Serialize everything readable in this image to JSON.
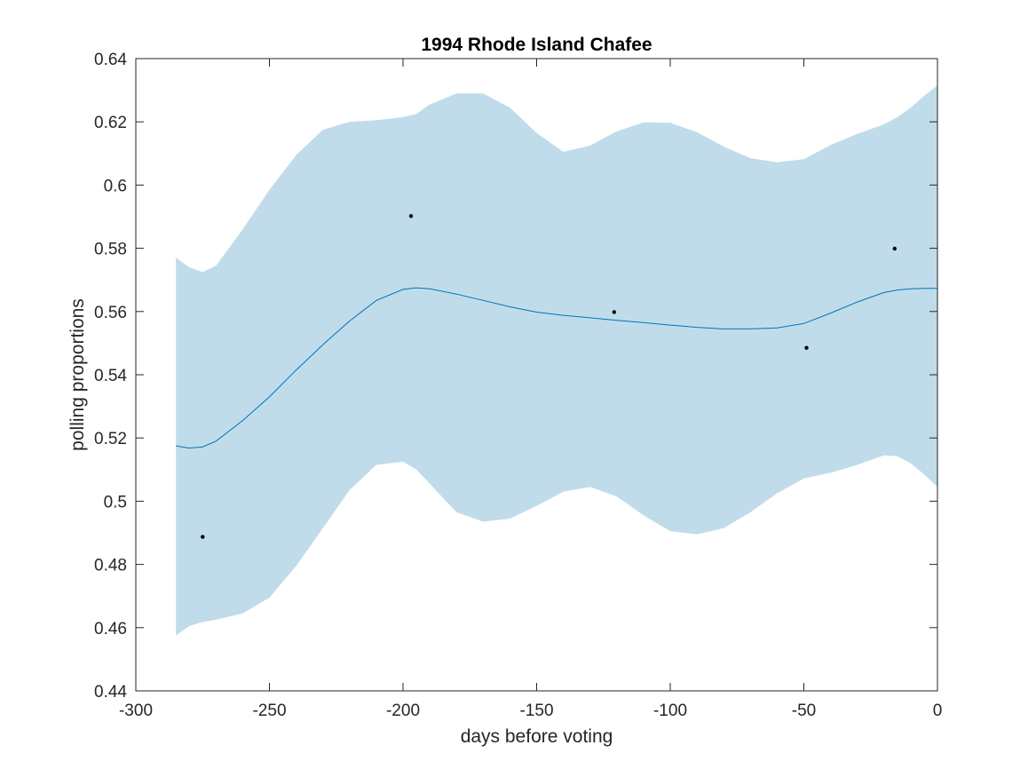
{
  "chart_data": {
    "type": "line",
    "title": "1994 Rhode Island Chafee",
    "xlabel": "days before voting",
    "ylabel": "polling proportions",
    "xlim": [
      -300,
      0
    ],
    "ylim": [
      0.44,
      0.64
    ],
    "xticks": [
      -300,
      -250,
      -200,
      -150,
      -100,
      -50,
      0
    ],
    "xtick_labels": [
      "-300",
      "-250",
      "-200",
      "-150",
      "-100",
      "-50",
      "0"
    ],
    "yticks": [
      0.44,
      0.46,
      0.48,
      0.5,
      0.52,
      0.54,
      0.56,
      0.58,
      0.6,
      0.62,
      0.64
    ],
    "ytick_labels": [
      "0.44",
      "0.46",
      "0.48",
      "0.5",
      "0.52",
      "0.54",
      "0.56",
      "0.58",
      "0.6",
      "0.62",
      "0.64"
    ],
    "grid": false,
    "colors": {
      "band": "#c0dcea",
      "line": "#0072bd",
      "points": "#000000",
      "axes": "#262626"
    },
    "series": [
      {
        "type": "line",
        "x": [
          -285,
          -280,
          -275,
          -270,
          -260,
          -250,
          -240,
          -230,
          -220,
          -210,
          -200,
          -195,
          -190,
          -180,
          -170,
          -160,
          -150,
          -140,
          -130,
          -120,
          -110,
          -100,
          -90,
          -80,
          -70,
          -60,
          -50,
          -40,
          -30,
          -20,
          -15,
          -10,
          -5,
          0
        ],
        "y": [
          0.5175,
          0.5168,
          0.5172,
          0.519,
          0.5255,
          0.533,
          0.5415,
          0.5495,
          0.557,
          0.5635,
          0.567,
          0.5675,
          0.5672,
          0.5655,
          0.5635,
          0.5615,
          0.5598,
          0.5588,
          0.558,
          0.5572,
          0.5565,
          0.5557,
          0.555,
          0.5545,
          0.5545,
          0.5548,
          0.5562,
          0.5595,
          0.563,
          0.566,
          0.5668,
          0.5672,
          0.5673,
          0.5673
        ]
      },
      {
        "type": "band",
        "x": [
          -285,
          -280,
          -275,
          -270,
          -260,
          -250,
          -240,
          -230,
          -220,
          -210,
          -200,
          -195,
          -190,
          -180,
          -170,
          -160,
          -150,
          -140,
          -130,
          -120,
          -110,
          -100,
          -90,
          -80,
          -70,
          -60,
          -50,
          -40,
          -30,
          -20,
          -15,
          -10,
          -5,
          0
        ],
        "upper": [
          0.577,
          0.574,
          0.5725,
          0.5745,
          0.586,
          0.5985,
          0.6095,
          0.6175,
          0.62,
          0.6205,
          0.6215,
          0.6225,
          0.6255,
          0.629,
          0.629,
          0.6245,
          0.6165,
          0.6105,
          0.6125,
          0.617,
          0.6198,
          0.6197,
          0.6167,
          0.6122,
          0.6085,
          0.6072,
          0.6082,
          0.6127,
          0.6162,
          0.6192,
          0.6215,
          0.6245,
          0.6282,
          0.6315
        ],
        "lower": [
          0.4575,
          0.4605,
          0.4618,
          0.4625,
          0.4645,
          0.4695,
          0.4795,
          0.4915,
          0.5035,
          0.5115,
          0.5125,
          0.51,
          0.5055,
          0.4965,
          0.4935,
          0.4945,
          0.4985,
          0.503,
          0.5045,
          0.5015,
          0.4955,
          0.4905,
          0.4895,
          0.4915,
          0.4965,
          0.5025,
          0.5072,
          0.509,
          0.5115,
          0.5145,
          0.5142,
          0.512,
          0.5085,
          0.5045
        ]
      },
      {
        "type": "scatter",
        "x": [
          -275,
          -197,
          -121,
          -49,
          -16
        ],
        "y": [
          0.4887,
          0.5902,
          0.5598,
          0.5485,
          0.5799
        ]
      }
    ]
  }
}
